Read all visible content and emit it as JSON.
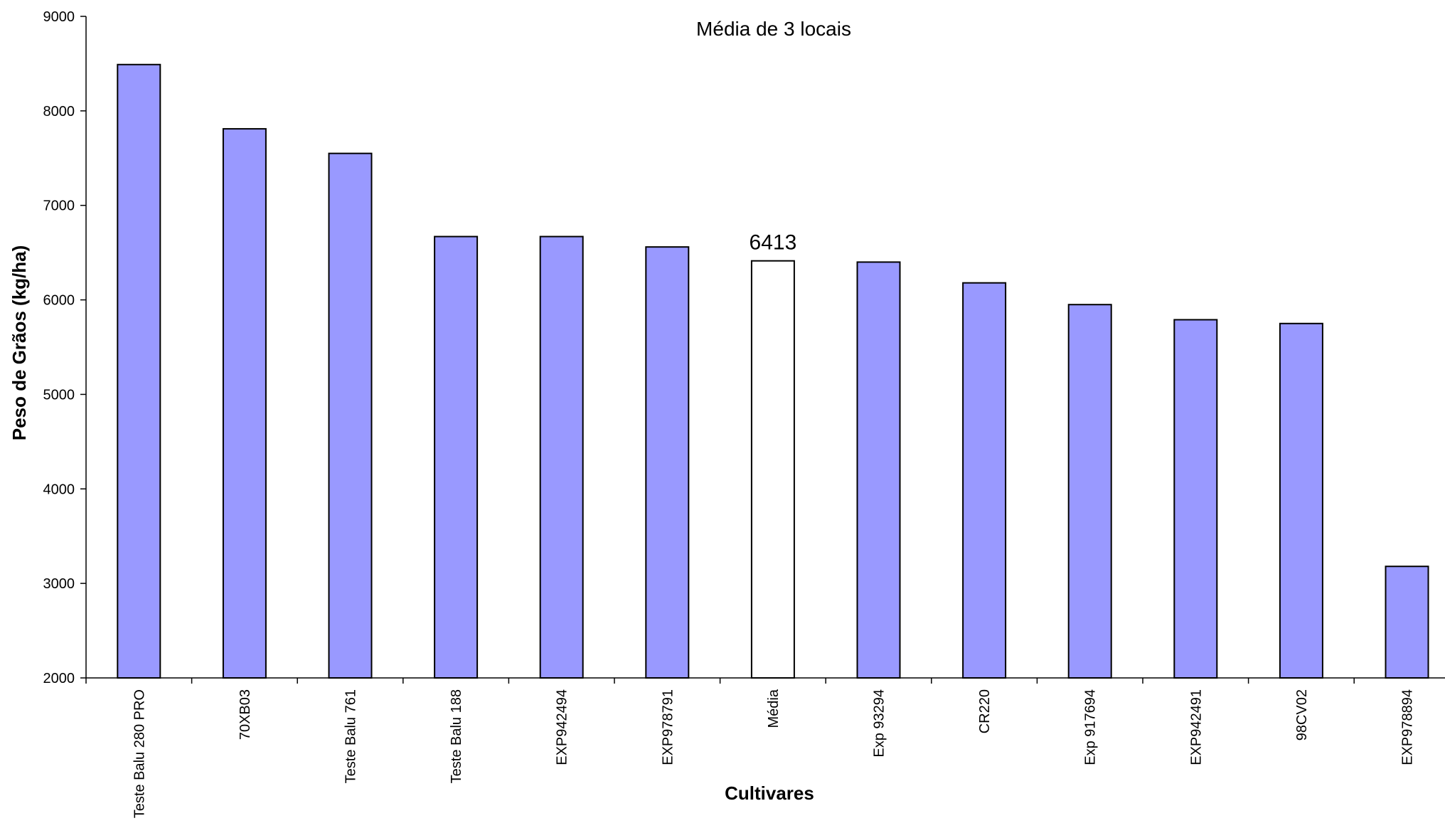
{
  "chart_data": {
    "type": "bar",
    "title": "Média de 3 locais",
    "xlabel": "Cultivares",
    "ylabel": "Peso de Grãos (kg/ha)",
    "ylim": [
      2000,
      9000
    ],
    "yticks": [
      2000,
      3000,
      4000,
      5000,
      6000,
      7000,
      8000,
      9000
    ],
    "grid": false,
    "categories": [
      "Teste Balu 280 PRO",
      "70XB03",
      "Teste Balu 761",
      "Teste Balu 188",
      "EXP942494",
      "EXP978791",
      "Média",
      "Exp 93294",
      "CR220",
      "Exp 917694",
      "EXP942491",
      "98CV02",
      "EXP978894"
    ],
    "values": [
      8490,
      7810,
      7550,
      6670,
      6670,
      6560,
      6413,
      6400,
      6180,
      5950,
      5790,
      5750,
      3180
    ],
    "highlight_category": "Média",
    "data_labels": {
      "Média": "6413"
    },
    "colors": {
      "bar": "#9999ff",
      "highlight_bar": "#ffffff",
      "bar_stroke": "#000000",
      "axis": "#000000"
    }
  }
}
